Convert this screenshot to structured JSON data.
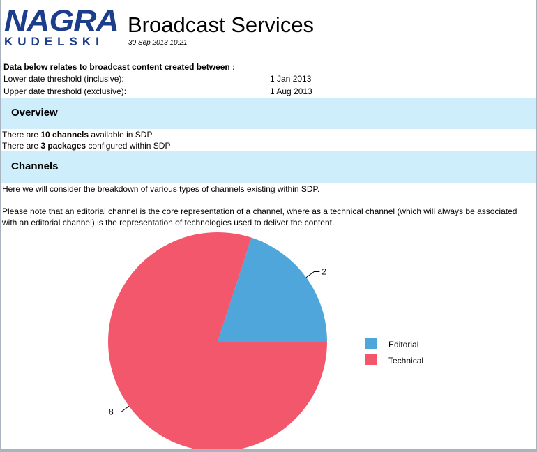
{
  "header": {
    "logo_top": "NAGRA",
    "logo_bottom": "KUDELSKI",
    "title": "Broadcast Services",
    "timestamp": "30 Sep 2013 10:21"
  },
  "date_range": {
    "intro": "Data below relates to broadcast content created between :",
    "lower_label": "Lower date threshold (inclusive):",
    "lower_value": "1 Jan 2013",
    "upper_label": "Upper date threshold (exclusive):",
    "upper_value": "1 Aug 2013"
  },
  "overview": {
    "heading": "Overview",
    "line1_prefix": "There are ",
    "line1_bold": "10 channels",
    "line1_suffix": " available in SDP",
    "line2_prefix": "There are ",
    "line2_bold": "3 packages",
    "line2_suffix": " configured within SDP"
  },
  "channels": {
    "heading": "Channels",
    "description": "Here we will consider the breakdown of various types of channels existing within SDP.",
    "note": "Please note that an editorial channel is the core representation of a channel, where as a technical channel (which will always be associated with an editorial channel) is the representation of technologies used to deliver the content."
  },
  "colors": {
    "section_band": "#cdeefa",
    "editorial": "#4ea6db",
    "technical": "#f2576b",
    "logo": "#1c3c8c"
  },
  "chart_data": {
    "type": "pie",
    "categories": [
      "Editorial",
      "Technical"
    ],
    "values": [
      2,
      8
    ],
    "data_labels": [
      "2",
      "8"
    ],
    "colors": [
      "#4ea6db",
      "#f2576b"
    ],
    "legend_position": "right"
  }
}
